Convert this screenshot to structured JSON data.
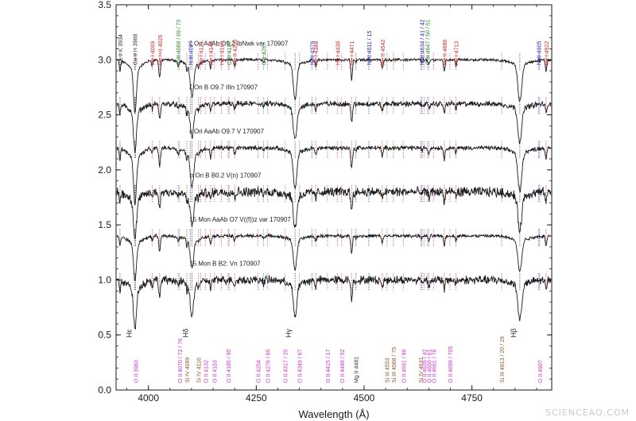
{
  "watermark": "SCIENCEAQ.COM",
  "colors": {
    "ink": "#1a1a1a",
    "helium_ii": "#d42a2a",
    "carbon_iii": "#2e8b2e",
    "nitrogen_iii": "#2424b8",
    "oxygen_ii": "#cc33cc",
    "silicon": "#8b5a2b",
    "other": "#333333"
  },
  "chart_data": {
    "type": "line",
    "title": "",
    "xlabel": "Wavelength (Å)",
    "ylabel": "",
    "xlim": [
      3925,
      4935
    ],
    "ylim": [
      0.0,
      3.5
    ],
    "x_ticks": [
      4000,
      4250,
      4500,
      4750
    ],
    "y_ticks": [
      "0.0",
      "0.5",
      "1.0",
      "1.5",
      "2.0",
      "2.5",
      "3.0",
      "3.5"
    ],
    "y_tick_values": [
      0.0,
      0.5,
      1.0,
      1.5,
      2.0,
      2.5,
      3.0,
      3.5
    ],
    "series": [
      {
        "name": "ζ Ori AaAb   O9.2 IbNwk var 170907",
        "offset": 3.0,
        "noise": 0.01,
        "depth": 1.0
      },
      {
        "name": "ζ Ori B   O9.7 IIIn 170907",
        "offset": 2.6,
        "noise": 0.02,
        "depth": 0.9
      },
      {
        "name": "ε Ori AaAb   O9.7 V 170907",
        "offset": 2.2,
        "noise": 0.015,
        "depth": 1.05
      },
      {
        "name": "σ Ori B   B0.2 V(n) 170907",
        "offset": 1.8,
        "noise": 0.035,
        "depth": 0.9
      },
      {
        "name": "15 Mon AaAb   O7 V((f))z var 170907",
        "offset": 1.4,
        "noise": 0.012,
        "depth": 0.85
      },
      {
        "name": "15 Mon B   B2: Vn 170907",
        "offset": 1.0,
        "noise": 0.03,
        "depth": 0.95
      }
    ],
    "absorption_lines": [
      {
        "w": 3934,
        "depth": 0.1,
        "width": 1.5
      },
      {
        "w": 3968,
        "depth": 0.22,
        "width": 3.0
      },
      {
        "w": 3970,
        "depth": 0.2,
        "width": 3.5
      },
      {
        "w": 4009,
        "depth": 0.05,
        "width": 1.5
      },
      {
        "w": 4026,
        "depth": 0.16,
        "width": 2.0
      },
      {
        "w": 4069,
        "depth": 0.05,
        "width": 1.5
      },
      {
        "w": 4089,
        "depth": 0.08,
        "width": 1.5
      },
      {
        "w": 4101,
        "depth": 0.3,
        "width": 4.0
      },
      {
        "w": 4116,
        "depth": 0.04,
        "width": 1.5
      },
      {
        "w": 4144,
        "depth": 0.08,
        "width": 1.8
      },
      {
        "w": 4200,
        "depth": 0.06,
        "width": 1.8
      },
      {
        "w": 4267,
        "depth": 0.03,
        "width": 1.5
      },
      {
        "w": 4340,
        "depth": 0.32,
        "width": 4.0
      },
      {
        "w": 4388,
        "depth": 0.06,
        "width": 1.8
      },
      {
        "w": 4471,
        "depth": 0.18,
        "width": 2.0
      },
      {
        "w": 4481,
        "depth": 0.03,
        "width": 1.2
      },
      {
        "w": 4542,
        "depth": 0.08,
        "width": 1.8
      },
      {
        "w": 4634,
        "depth": 0.03,
        "width": 1.2
      },
      {
        "w": 4650,
        "depth": 0.05,
        "width": 2.0
      },
      {
        "w": 4686,
        "depth": 0.1,
        "width": 1.8
      },
      {
        "w": 4713,
        "depth": 0.05,
        "width": 1.5
      },
      {
        "w": 4861,
        "depth": 0.34,
        "width": 4.5
      },
      {
        "w": 4922,
        "depth": 0.1,
        "width": 1.8
      }
    ],
    "top_labels": [
      {
        "w": 3934,
        "text": "Ca II K 3934",
        "group": "other"
      },
      {
        "w": 3968,
        "text": "Ca II H 3968",
        "group": "other"
      },
      {
        "w": 4009,
        "text": "He I 4009",
        "group": "helium_i"
      },
      {
        "w": 4026,
        "text": "He I+II 4026",
        "group": "helium_i"
      },
      {
        "w": 4069,
        "text": "C III 4068 / 69 / 70",
        "group": "carbon_iii"
      },
      {
        "w": 4097,
        "text": "N III 4097",
        "group": "nitrogen_iii"
      },
      {
        "w": 4121,
        "text": "He I 4121",
        "group": "helium_i"
      },
      {
        "w": 4144,
        "text": "He I 4144",
        "group": "helium_i"
      },
      {
        "w": 4169,
        "text": "He I 4169",
        "group": "helium_i"
      },
      {
        "w": 4187,
        "text": "C III 4187",
        "group": "carbon_iii"
      },
      {
        "w": 4200,
        "text": "He II 4200",
        "group": "helium_i"
      },
      {
        "w": 4267,
        "text": "C II 4267",
        "group": "carbon_iii"
      },
      {
        "w": 4379,
        "text": "N III 4379",
        "group": "nitrogen_iii"
      },
      {
        "w": 4388,
        "text": "He I 4388",
        "group": "helium_i"
      },
      {
        "w": 4438,
        "text": "He I 4438",
        "group": "helium_i"
      },
      {
        "w": 4471,
        "text": "He I 4471",
        "group": "helium_i"
      },
      {
        "w": 4511,
        "text": "N III 4511 / 15",
        "group": "nitrogen_iii"
      },
      {
        "w": 4542,
        "text": "He II 4542",
        "group": "helium_i"
      },
      {
        "w": 4634,
        "text": "N III 4634 / 41 / 42",
        "group": "nitrogen_iii"
      },
      {
        "w": 4647,
        "text": "C III 4647 / 50 / 51",
        "group": "carbon_iii"
      },
      {
        "w": 4686,
        "text": "He II 4686",
        "group": "helium_i"
      },
      {
        "w": 4713,
        "text": "He I 4713",
        "group": "helium_i"
      },
      {
        "w": 4905,
        "text": "N III 4905",
        "group": "nitrogen_iii"
      },
      {
        "w": 4922,
        "text": "He I 4922",
        "group": "helium_i"
      }
    ],
    "bottom_labels": [
      {
        "w": 3970,
        "text": "Hε",
        "group": "other"
      },
      {
        "w": 3970,
        "text": "O II 3983",
        "group": "oxygen_ii"
      },
      {
        "w": 4072,
        "text": "O II 4070 / 72 / 76",
        "group": "oxygen_ii"
      },
      {
        "w": 4089,
        "text": "Si IV 4089",
        "group": "silicon"
      },
      {
        "w": 4101,
        "text": "Hδ",
        "group": "other"
      },
      {
        "w": 4116,
        "text": "Si IV 4116",
        "group": "silicon"
      },
      {
        "w": 4132,
        "text": "O II 4132",
        "group": "oxygen_ii"
      },
      {
        "w": 4153,
        "text": "O II 4153",
        "group": "oxygen_ii"
      },
      {
        "w": 4185,
        "text": "O II 4185 / 90",
        "group": "oxygen_ii"
      },
      {
        "w": 4254,
        "text": "O II 4254",
        "group": "oxygen_ii"
      },
      {
        "w": 4276,
        "text": "O II 4276 / 85",
        "group": "oxygen_ii"
      },
      {
        "w": 4317,
        "text": "O II 4317 / 20",
        "group": "oxygen_ii"
      },
      {
        "w": 4340,
        "text": "Hγ",
        "group": "other"
      },
      {
        "w": 4350,
        "text": "O II 4349 / 67",
        "group": "oxygen_ii"
      },
      {
        "w": 4415,
        "text": "O II 4415 / 17",
        "group": "oxygen_ii"
      },
      {
        "w": 4448,
        "text": "O II 4448 / 52",
        "group": "oxygen_ii"
      },
      {
        "w": 4481,
        "text": "Mg II 4481",
        "group": "other"
      },
      {
        "w": 4553,
        "text": "Si III 4553",
        "group": "silicon"
      },
      {
        "w": 4568,
        "text": "Si III 4568 / 75",
        "group": "silicon"
      },
      {
        "w": 4591,
        "text": "O II 4591 / 96",
        "group": "oxygen_ii"
      },
      {
        "w": 4631,
        "text": "Si IV 4631",
        "group": "silicon"
      },
      {
        "w": 4639,
        "text": "O II 4639 / 42",
        "group": "oxygen_ii"
      },
      {
        "w": 4650,
        "text": "O II 4650 / 61",
        "group": "oxygen_ii"
      },
      {
        "w": 4661,
        "text": "O II 4661 / 76",
        "group": "oxygen_ii"
      },
      {
        "w": 4699,
        "text": "O II 4699 / 705",
        "group": "oxygen_ii"
      },
      {
        "w": 4819,
        "text": "Si III 4813 / 20 / 29",
        "group": "silicon"
      },
      {
        "w": 4861,
        "text": "Hβ",
        "group": "other"
      },
      {
        "w": 4907,
        "text": "O II 4907",
        "group": "oxygen_ii"
      }
    ]
  }
}
